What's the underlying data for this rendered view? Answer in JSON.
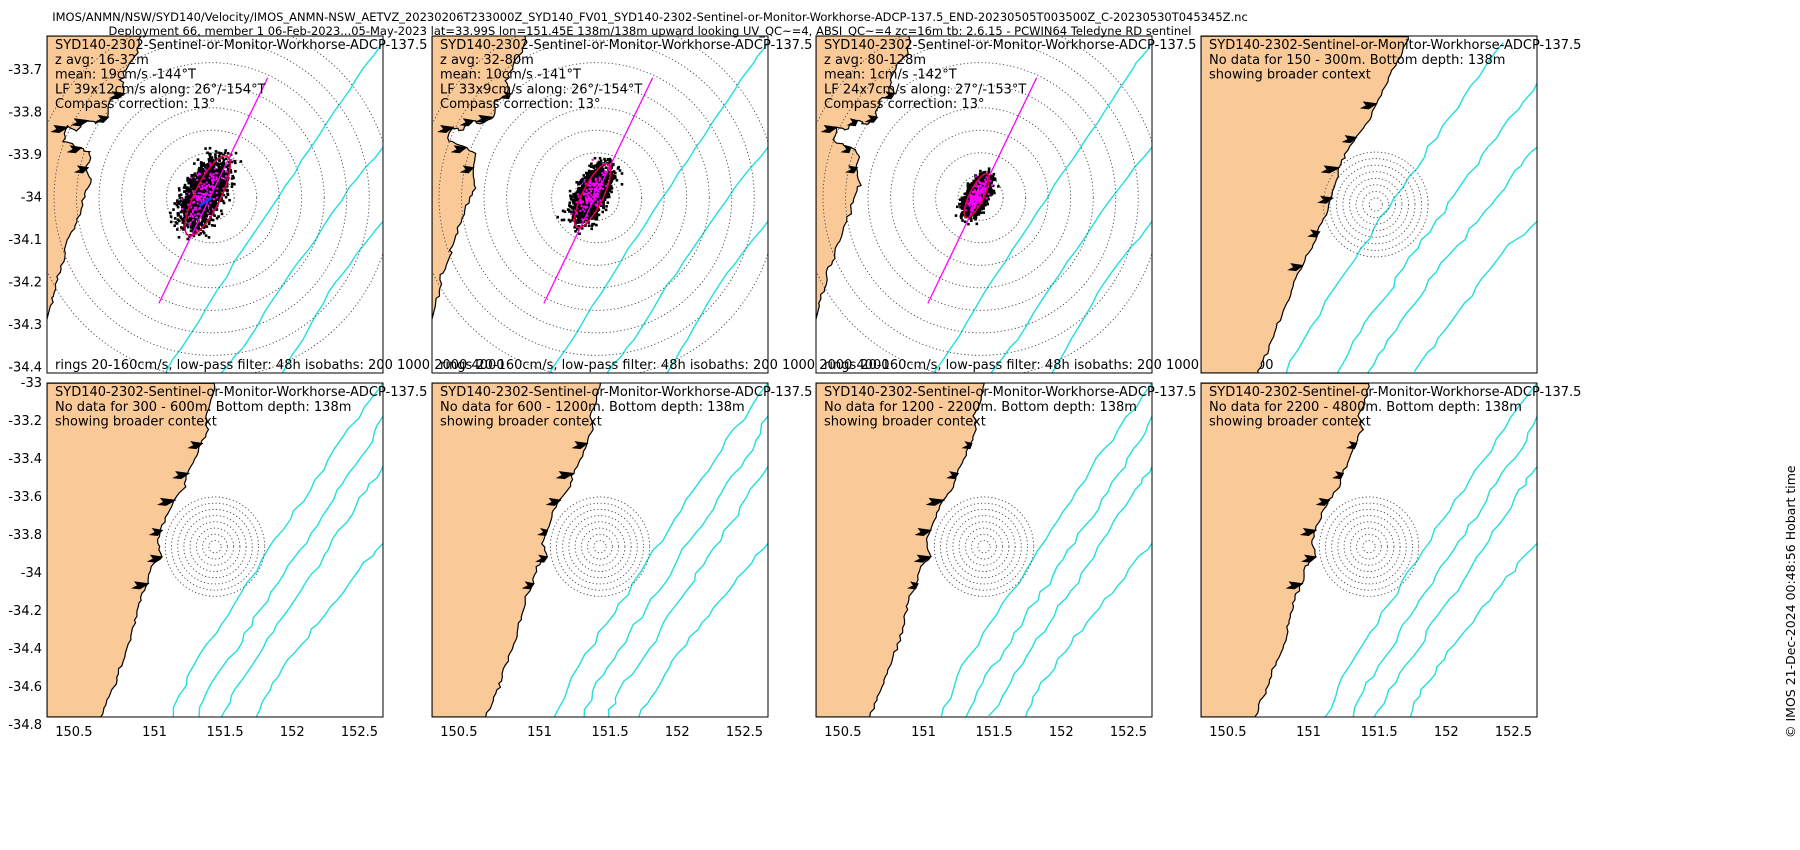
{
  "title": {
    "line1": "IMOS/ANMN/NSW/SYD140/Velocity/IMOS_ANMN-NSW_AETVZ_20230206T233000Z_SYD140_FV01_SYD140-2302-Sentinel-or-Monitor-Workhorse-ADCP-137.5_END-20230505T003500Z_C-20230530T045345Z.nc",
    "line2": "Deployment 66, member 1 06-Feb-2023...05-May-2023 lat=33.99S lon=151.45E 138m/138m upward looking UV_QC~=4, ABSI_QC~=4 zc=16m tb: 2.6.15 - PCWIN64 Teledyne RD sentinel"
  },
  "stamp": "© IMOS 21-Dec-2024 00:48:56 Hobart time",
  "colors": {
    "land": "#f9c998",
    "isobath": "#22dede",
    "axis_line": "#ff00ff",
    "ellipse": "#e0004a",
    "mean_arrow": "#1f3cff"
  },
  "axes": {
    "x_ticks": [
      "150.5",
      "151",
      "151.5",
      "152",
      "152.5"
    ],
    "top_y_ticks": [
      "-33.7",
      "-33.8",
      "-33.9",
      "-34",
      "-34.1",
      "-34.2",
      "-34.3",
      "-34.4"
    ],
    "bottom_y_ticks": [
      "-33",
      "-33.2",
      "-33.4",
      "-33.6",
      "-33.8",
      "-34",
      "-34.2",
      "-34.4",
      "-34.6",
      "-34.8"
    ]
  },
  "panels": [
    {
      "id": "p1",
      "kind": "data",
      "lines": [
        "SYD140-2302-Sentinel-or-Monitor-Workhorse-ADCP-137.5",
        "z avg: 16-32m",
        "mean: 19cm/s -144°T",
        "LF 39x12cm/s along: 26°/-154°T",
        "Compass correction: 13°"
      ],
      "footer": "rings 20-160cm/s, low-pass filter: 48h isobaths: 200 1000 2000 4000"
    },
    {
      "id": "p2",
      "kind": "data",
      "lines": [
        "SYD140-2302-Sentinel-or-Monitor-Workhorse-ADCP-137.5",
        "z avg: 32-80m",
        "mean: 10cm/s -141°T",
        "LF 33x9cm/s along: 26°/-154°T",
        "Compass correction: 13°"
      ],
      "footer": "rings 20-160cm/s, low-pass filter: 48h isobaths: 200 1000 2000 4000"
    },
    {
      "id": "p3",
      "kind": "data",
      "lines": [
        "SYD140-2302-Sentinel-or-Monitor-Workhorse-ADCP-137.5",
        "z avg: 80-128m",
        "mean: 1cm/s -142°T",
        "LF 24x7cm/s along: 27°/-153°T",
        "Compass correction: 13°"
      ],
      "footer": "rings 20-160cm/s, low-pass filter: 48h isobaths: 200 1000 2000 4000"
    },
    {
      "id": "p4",
      "kind": "nodata",
      "lines": [
        "SYD140-2302-Sentinel-or-Monitor-Workhorse-ADCP-137.5",
        "No data for 150 - 300m. Bottom depth: 138m",
        "showing broader context"
      ]
    },
    {
      "id": "p5",
      "kind": "nodata",
      "lines": [
        "SYD140-2302-Sentinel-or-Monitor-Workhorse-ADCP-137.5",
        "No data for 300 - 600m. Bottom depth: 138m",
        "showing broader context"
      ]
    },
    {
      "id": "p6",
      "kind": "nodata",
      "lines": [
        "SYD140-2302-Sentinel-or-Monitor-Workhorse-ADCP-137.5",
        "No data for 600 - 1200m. Bottom depth: 138m",
        "showing broader context"
      ]
    },
    {
      "id": "p7",
      "kind": "nodata",
      "lines": [
        "SYD140-2302-Sentinel-or-Monitor-Workhorse-ADCP-137.5",
        "No data for 1200 - 2200m. Bottom depth: 138m",
        "showing broader context"
      ]
    },
    {
      "id": "p8",
      "kind": "nodata",
      "lines": [
        "SYD140-2302-Sentinel-or-Monitor-Workhorse-ADCP-137.5",
        "No data for 2200 - 4800m. Bottom depth: 138m",
        "showing broader context"
      ]
    }
  ]
}
